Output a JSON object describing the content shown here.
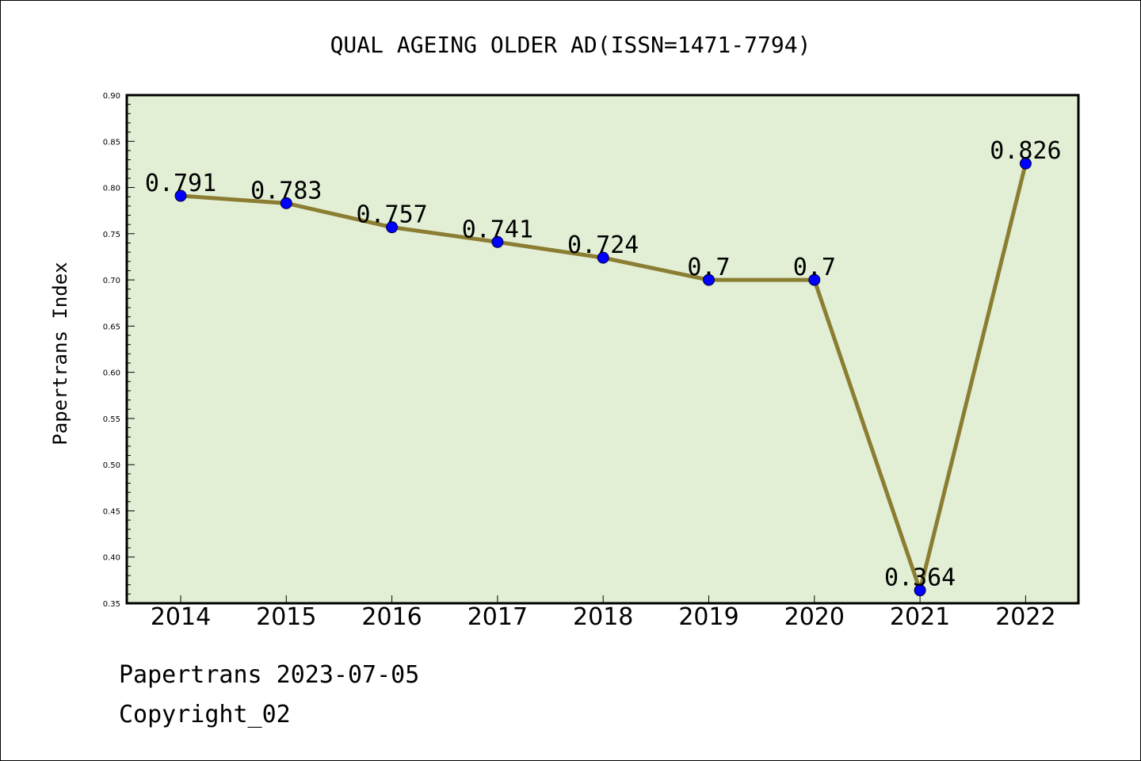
{
  "chart_data": {
    "type": "line",
    "title": "QUAL AGEING OLDER AD(ISSN=1471-7794)",
    "ylabel": "Papertrans Index",
    "xlabel": "",
    "categories": [
      "2014",
      "2015",
      "2016",
      "2017",
      "2018",
      "2019",
      "2020",
      "2021",
      "2022"
    ],
    "values": [
      0.791,
      0.783,
      0.757,
      0.741,
      0.724,
      0.7,
      0.7,
      0.364,
      0.826
    ],
    "data_labels": [
      "0.791",
      "0.783",
      "0.757",
      "0.741",
      "0.724",
      "0.7",
      "0.7",
      "0.364",
      "0.826"
    ],
    "ylim": [
      0.35,
      0.9
    ],
    "yticks": [
      "0.35",
      "0.40",
      "0.45",
      "0.50",
      "0.55",
      "0.60",
      "0.65",
      "0.70",
      "0.75",
      "0.80",
      "0.85",
      "0.90"
    ],
    "grid": false,
    "legend": "none",
    "colors": {
      "plot_background": "#e2efd5",
      "line": "#8b7d32",
      "marker": "#0000ff",
      "axes": "#000000"
    }
  },
  "footer": {
    "date_line": "Papertrans 2023-07-05",
    "copyright_line": "Copyright_02"
  }
}
